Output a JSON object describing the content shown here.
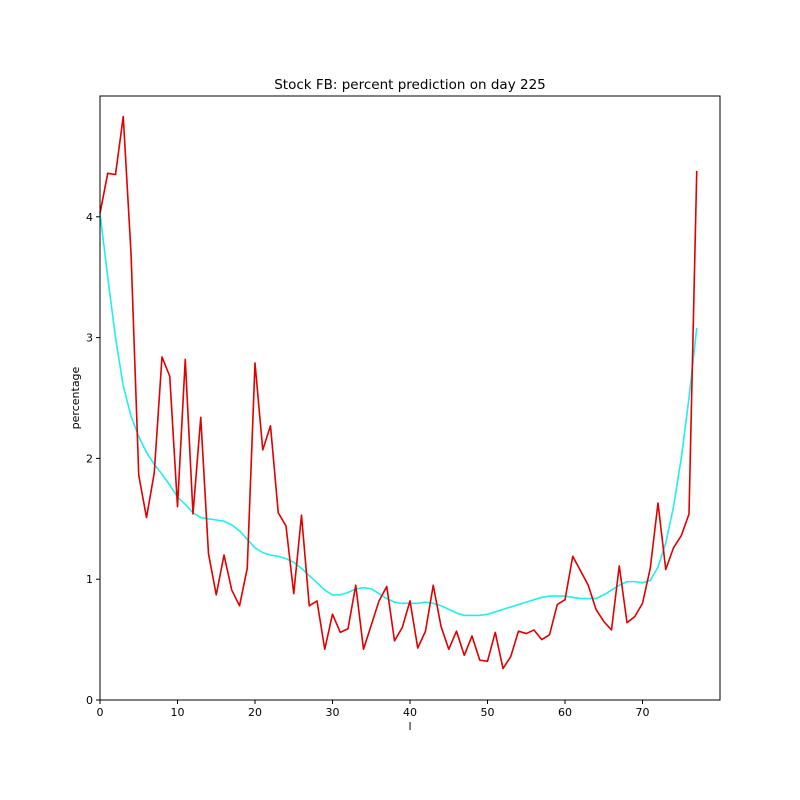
{
  "chart_data": {
    "type": "line",
    "title": "Stock FB: percent prediction on day 225",
    "xlabel": "l",
    "ylabel": "percentage",
    "xlim": [
      0,
      80
    ],
    "ylim": [
      0,
      5
    ],
    "xticks": [
      0,
      10,
      20,
      30,
      40,
      50,
      60,
      70
    ],
    "yticks": [
      0,
      1,
      2,
      3,
      4
    ],
    "grid": false,
    "legend": "none",
    "series": [
      {
        "color": "#e00000",
        "x": [
          0,
          1,
          2,
          3,
          4,
          5,
          6,
          7,
          8,
          9,
          10,
          11,
          12,
          13,
          14,
          15,
          16,
          17,
          18,
          19,
          20,
          21,
          22,
          23,
          24,
          25,
          26,
          27,
          28,
          29,
          30,
          31,
          32,
          33,
          34,
          35,
          36,
          37,
          38,
          39,
          40,
          41,
          42,
          43,
          44,
          45,
          46,
          47,
          48,
          49,
          50,
          51,
          52,
          53,
          54,
          55,
          56,
          57,
          58,
          59,
          60,
          61,
          62,
          63,
          64,
          65,
          66,
          67,
          68,
          69,
          70,
          71,
          72,
          73,
          74,
          75,
          76,
          77
        ],
        "values": [
          4.03,
          4.36,
          4.35,
          4.83,
          3.7,
          1.86,
          1.51,
          1.88,
          2.84,
          2.68,
          1.6,
          2.82,
          1.54,
          2.34,
          1.21,
          0.87,
          1.2,
          0.91,
          0.78,
          1.09,
          2.79,
          2.07,
          2.27,
          1.55,
          1.44,
          0.88,
          1.53,
          0.78,
          0.82,
          0.42,
          0.71,
          0.56,
          0.59,
          0.95,
          0.42,
          0.62,
          0.82,
          0.94,
          0.49,
          0.6,
          0.82,
          0.43,
          0.57,
          0.95,
          0.61,
          0.42,
          0.57,
          0.37,
          0.53,
          0.33,
          0.32,
          0.56,
          0.26,
          0.36,
          0.57,
          0.55,
          0.58,
          0.5,
          0.54,
          0.79,
          0.83,
          1.19,
          1.07,
          0.95,
          0.75,
          0.65,
          0.58,
          1.11,
          0.64,
          0.69,
          0.8,
          1.09,
          1.63,
          1.08,
          1.26,
          1.36,
          1.54,
          4.38
        ]
      },
      {
        "color": "#22eeee",
        "x": [
          0,
          1,
          2,
          3,
          4,
          5,
          6,
          7,
          8,
          9,
          10,
          11,
          12,
          13,
          14,
          15,
          16,
          17,
          18,
          19,
          20,
          21,
          22,
          23,
          24,
          25,
          26,
          27,
          28,
          29,
          30,
          31,
          32,
          33,
          34,
          35,
          36,
          37,
          38,
          39,
          40,
          41,
          42,
          43,
          44,
          45,
          46,
          47,
          48,
          49,
          50,
          51,
          52,
          53,
          54,
          55,
          56,
          57,
          58,
          59,
          60,
          61,
          62,
          63,
          64,
          65,
          66,
          67,
          68,
          69,
          70,
          71,
          72,
          73,
          74,
          75,
          76,
          77
        ],
        "values": [
          4.03,
          3.5,
          3.0,
          2.6,
          2.35,
          2.18,
          2.05,
          1.95,
          1.87,
          1.78,
          1.68,
          1.62,
          1.55,
          1.51,
          1.5,
          1.49,
          1.48,
          1.45,
          1.4,
          1.33,
          1.26,
          1.22,
          1.2,
          1.19,
          1.17,
          1.14,
          1.09,
          1.03,
          0.97,
          0.91,
          0.87,
          0.87,
          0.89,
          0.92,
          0.93,
          0.92,
          0.88,
          0.84,
          0.81,
          0.8,
          0.8,
          0.8,
          0.81,
          0.8,
          0.78,
          0.75,
          0.72,
          0.7,
          0.7,
          0.7,
          0.71,
          0.73,
          0.75,
          0.77,
          0.79,
          0.81,
          0.83,
          0.85,
          0.86,
          0.86,
          0.86,
          0.85,
          0.84,
          0.84,
          0.84,
          0.87,
          0.91,
          0.95,
          0.98,
          0.98,
          0.97,
          0.99,
          1.1,
          1.3,
          1.6,
          2.0,
          2.5,
          3.08
        ]
      }
    ]
  }
}
